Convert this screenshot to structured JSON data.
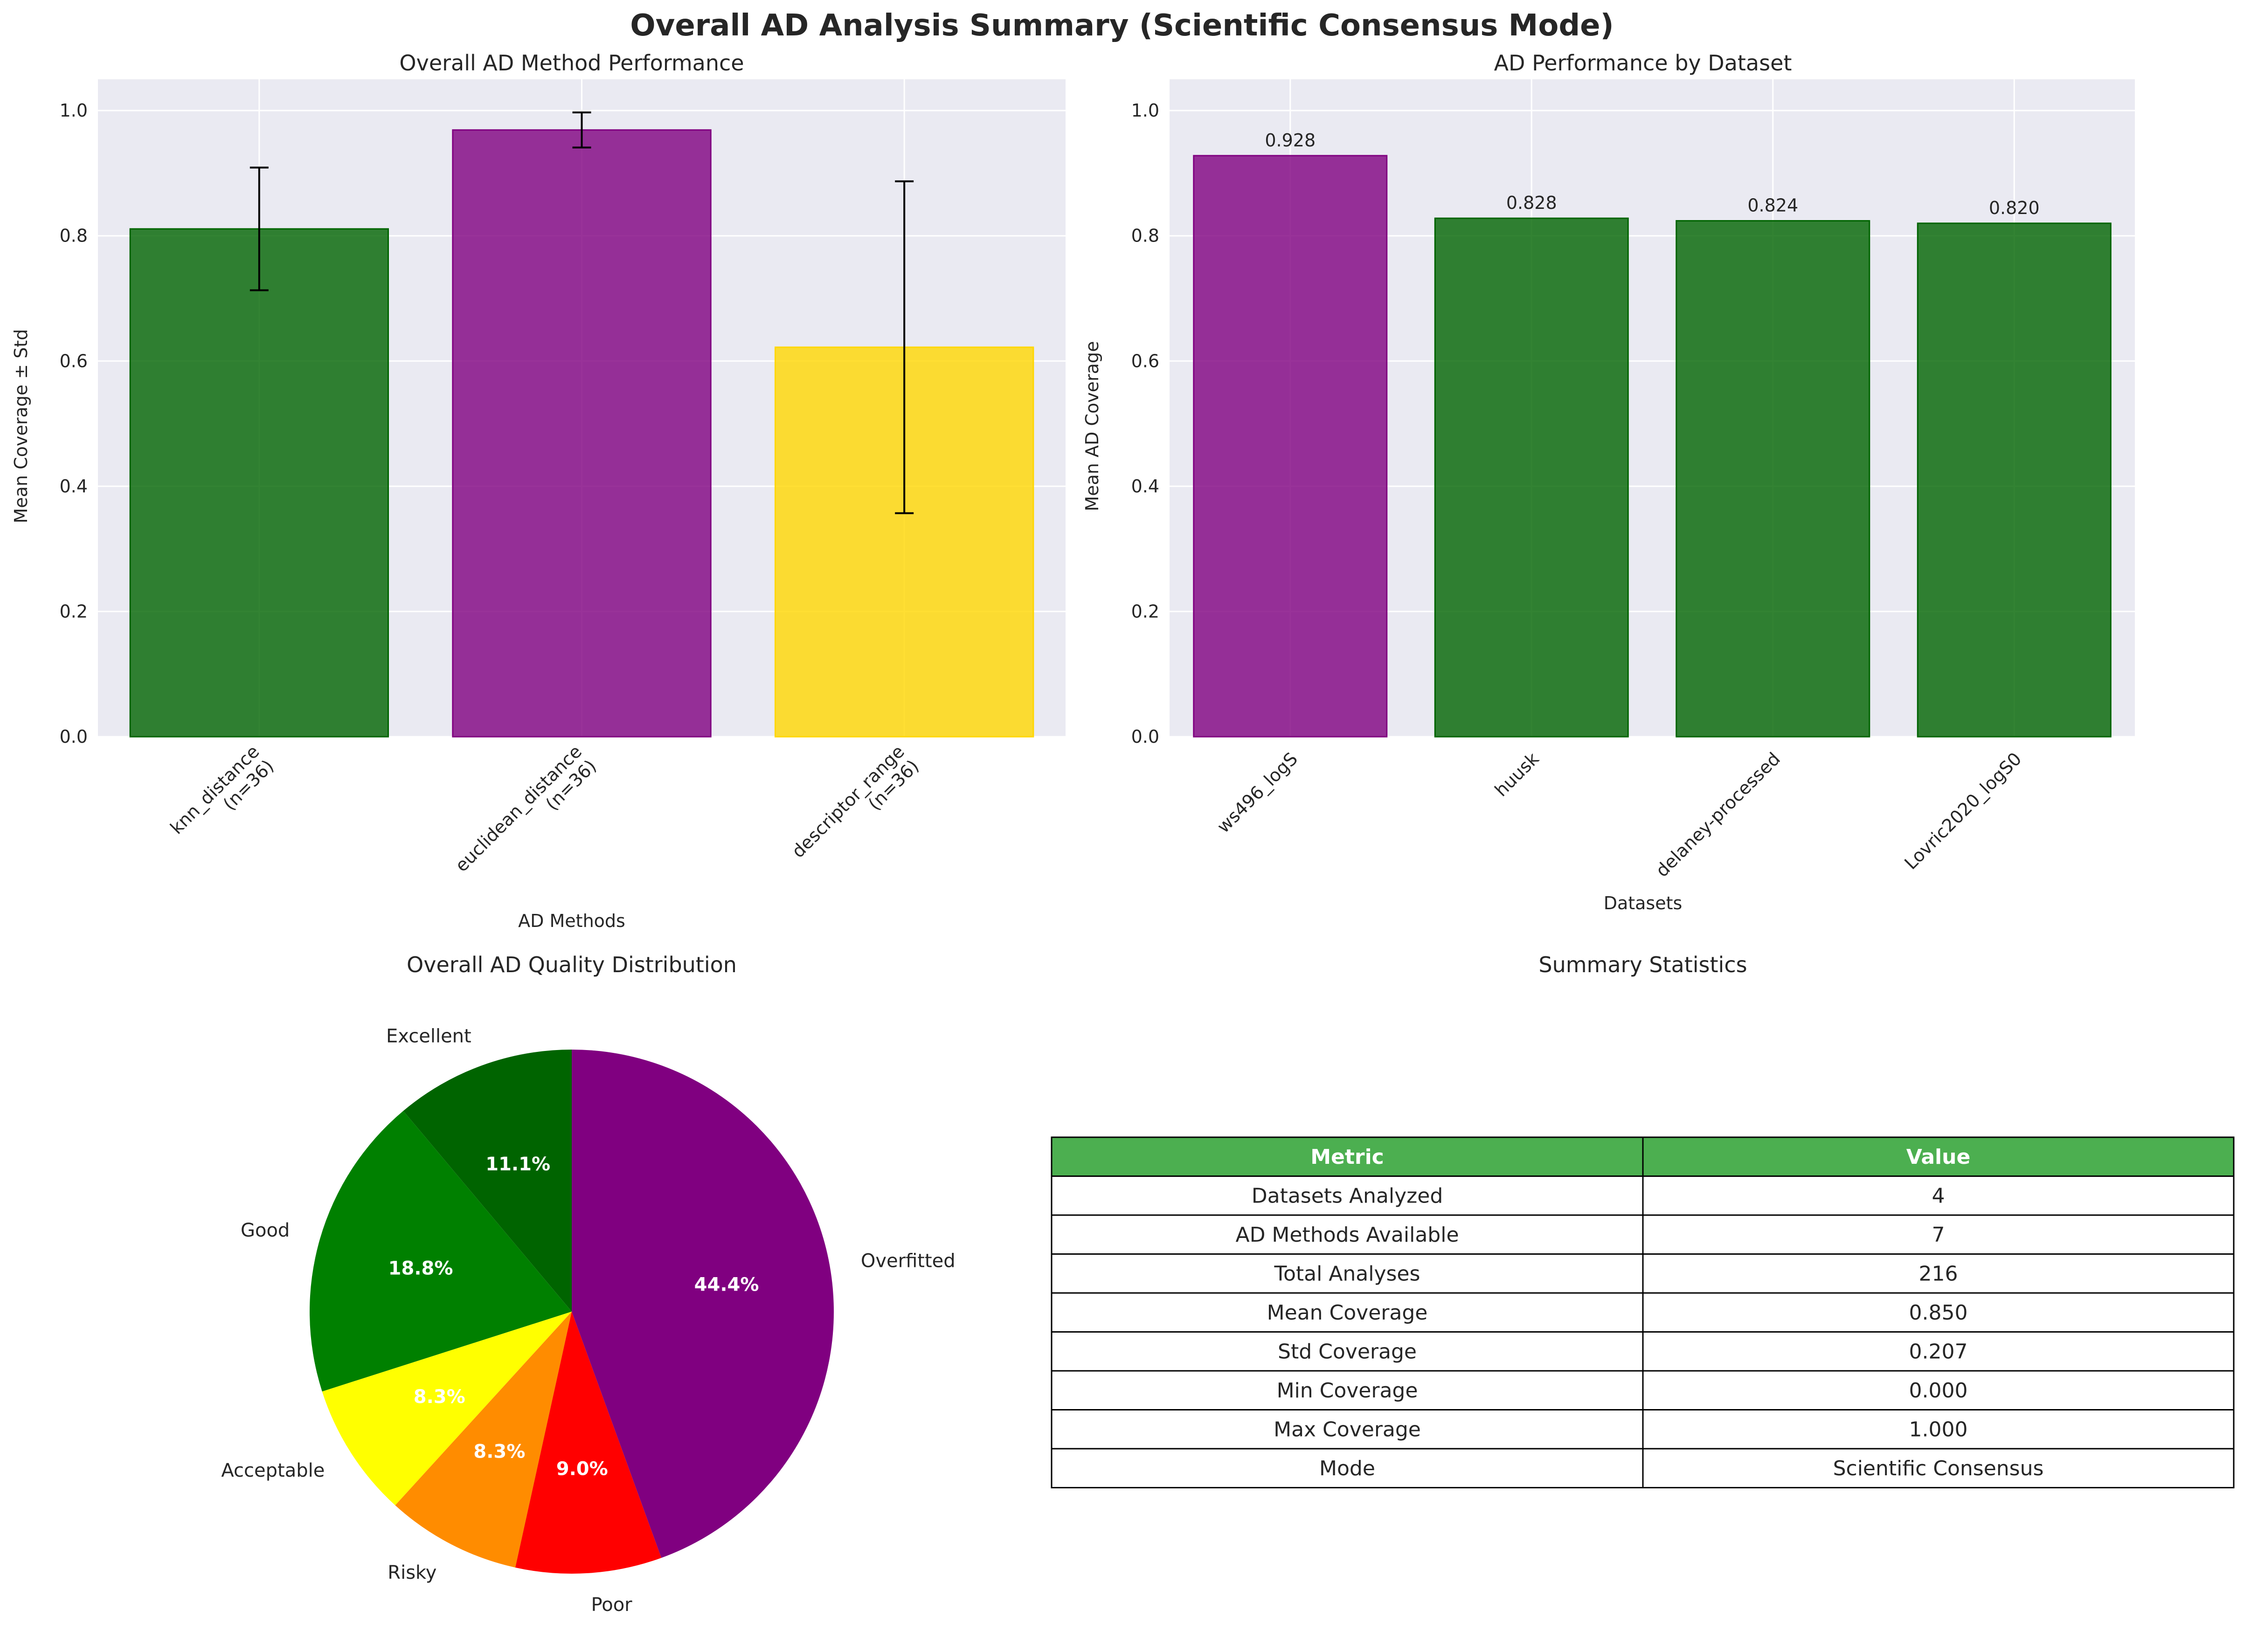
{
  "figure": {
    "title": "Overall AD Analysis Summary (Scientific Consensus Mode)"
  },
  "chart_data": [
    {
      "type": "bar",
      "title": "Overall AD Method Performance",
      "xlabel": "AD Methods",
      "ylabel": "Mean Coverage ± Std",
      "categories": [
        "knn_distance\n(n=36)",
        "euclidean_distance\n(n=36)",
        "descriptor_range\n(n=36)"
      ],
      "values": [
        0.811,
        0.969,
        0.622
      ],
      "errors": [
        0.098,
        0.028,
        0.265
      ],
      "colors": [
        "#006400",
        "#800080",
        "#FFD700"
      ],
      "ylim": [
        0,
        1.05
      ],
      "yticks": [
        "0.0",
        "0.2",
        "0.4",
        "0.6",
        "0.8",
        "1.0"
      ],
      "grid": true
    },
    {
      "type": "bar",
      "title": "AD Performance by Dataset",
      "xlabel": "Datasets",
      "ylabel": "Mean AD Coverage",
      "categories": [
        "ws496_logS",
        "huusk",
        "delaney-processed",
        "Lovric2020_logS0"
      ],
      "values": [
        0.928,
        0.828,
        0.824,
        0.82
      ],
      "value_labels": [
        "0.928",
        "0.828",
        "0.824",
        "0.820"
      ],
      "colors": [
        "#800080",
        "#006400",
        "#006400",
        "#006400"
      ],
      "ylim": [
        0,
        1.05
      ],
      "yticks": [
        "0.0",
        "0.2",
        "0.4",
        "0.6",
        "0.8",
        "1.0"
      ],
      "grid": true
    },
    {
      "type": "pie",
      "title": "Overall AD Quality Distribution",
      "labels": [
        "Excellent",
        "Good",
        "Acceptable",
        "Risky",
        "Poor",
        "Overfitted"
      ],
      "values": [
        11.1,
        18.8,
        8.3,
        8.3,
        9.0,
        44.4
      ],
      "pct_labels": [
        "11.1%",
        "18.8%",
        "8.3%",
        "8.3%",
        "9.0%",
        "44.4%"
      ],
      "colors": [
        "#006400",
        "#008000",
        "#FFFF00",
        "#FF8C00",
        "#FF0000",
        "#800080"
      ]
    },
    {
      "type": "table",
      "title": "Summary Statistics",
      "columns": [
        "Metric",
        "Value"
      ],
      "header_color": "#4CAF50",
      "rows": [
        [
          "Datasets Analyzed",
          "4"
        ],
        [
          "AD Methods Available",
          "7"
        ],
        [
          "Total Analyses",
          "216"
        ],
        [
          "Mean Coverage",
          "0.850"
        ],
        [
          "Std Coverage",
          "0.207"
        ],
        [
          "Min Coverage",
          "0.000"
        ],
        [
          "Max Coverage",
          "1.000"
        ],
        [
          "Mode",
          "Scientific Consensus"
        ]
      ]
    }
  ]
}
